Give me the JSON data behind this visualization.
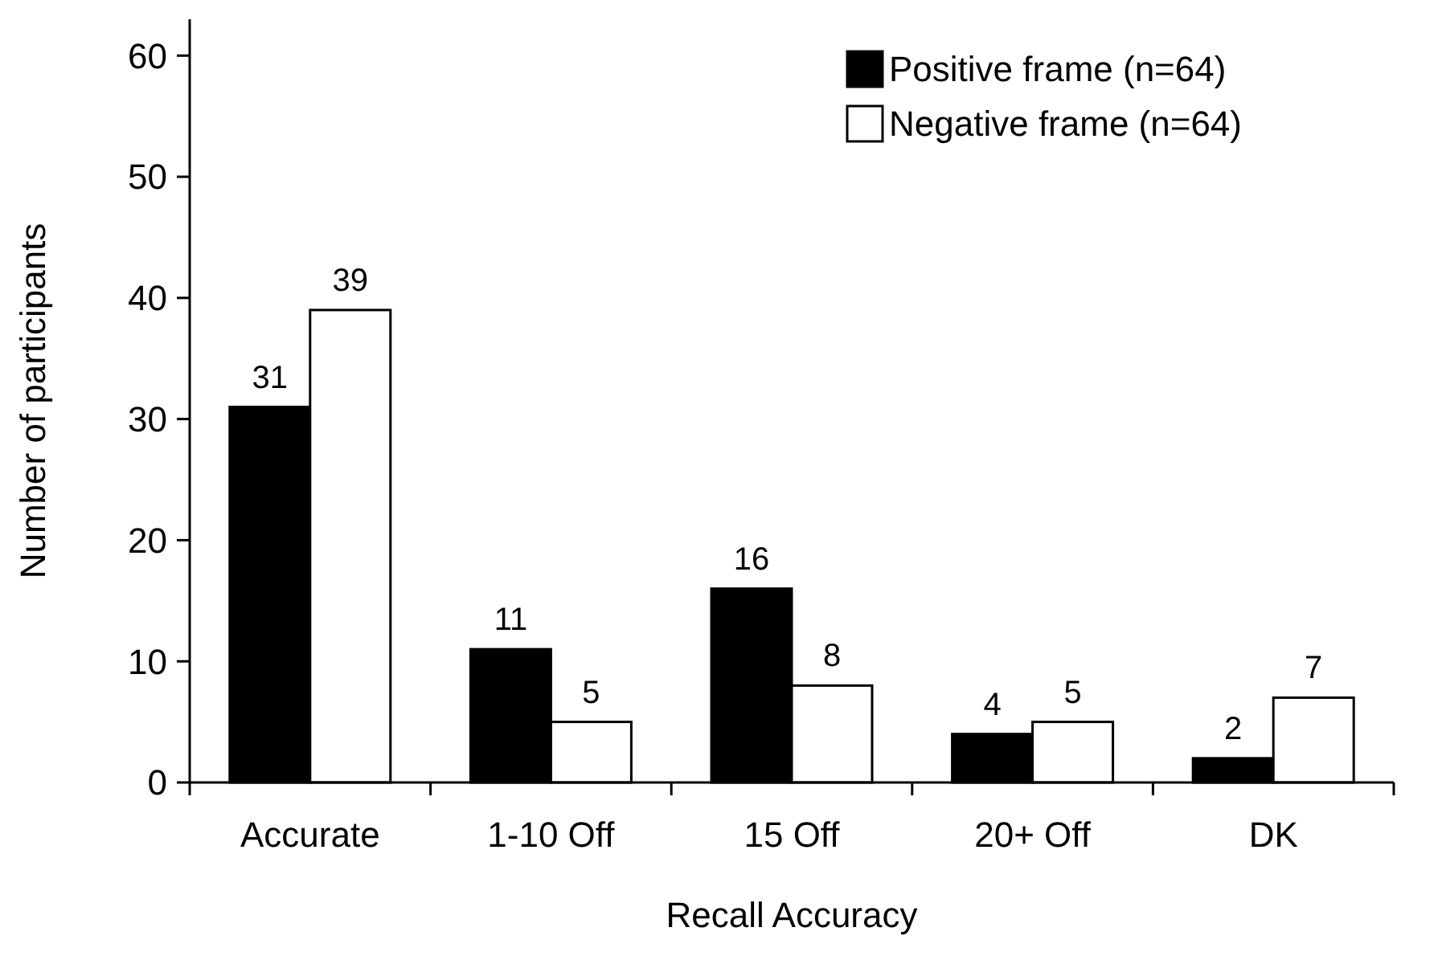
{
  "chart_data": {
    "type": "bar",
    "xlabel": "Recall Accuracy",
    "ylabel": "Number of participants",
    "categories": [
      "Accurate",
      "1-10 Off",
      "15 Off",
      "20+ Off",
      "DK"
    ],
    "series": [
      {
        "name": "Positive frame (n=64)",
        "color": "#000000",
        "values": [
          31,
          11,
          16,
          4,
          2
        ]
      },
      {
        "name": "Negative frame (n=64)",
        "color": "#ffffff",
        "values": [
          39,
          5,
          8,
          5,
          7
        ]
      }
    ],
    "ylim": [
      0,
      63
    ],
    "yticks": [
      0,
      10,
      20,
      30,
      40,
      50,
      60
    ],
    "grid": false,
    "legend": "top right",
    "data_labels": true
  }
}
